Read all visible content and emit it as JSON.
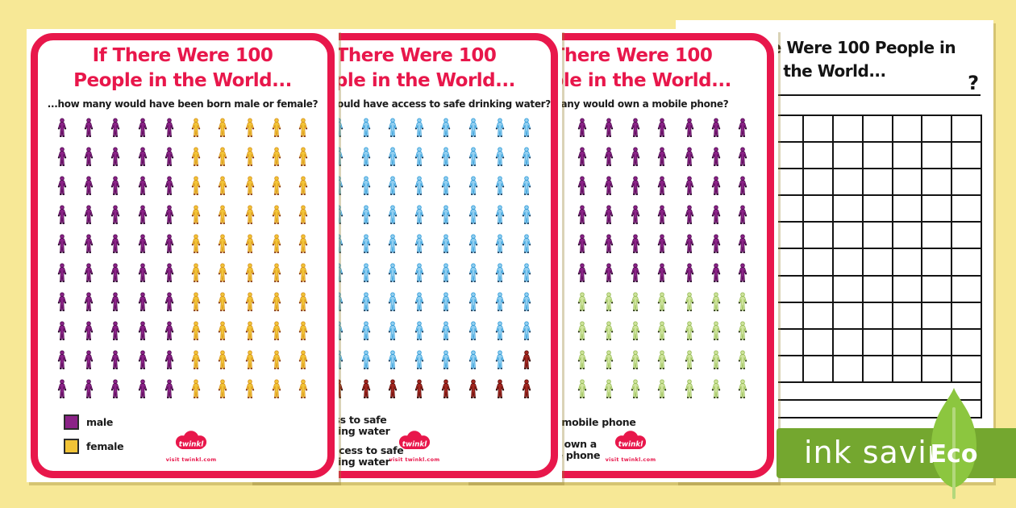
{
  "palette": {
    "background": "#f7e896",
    "accent_red": "#e8174b",
    "text_black": "#1b1b1b",
    "banner_green": "#74a72f",
    "leaf_green": "#8cc63f",
    "leaf_stem_green": "#b3d87c",
    "icon_colors": {
      "purple": {
        "fill": "#8b2287",
        "stroke": "#4f0b50",
        "ext": "#1d001f"
      },
      "yellow": {
        "fill": "#f2c437",
        "stroke": "#d6921e",
        "ext": "#7a2a10"
      },
      "blue": {
        "fill": "#92cff0",
        "stroke": "#2f9bd8",
        "ext": "#16324f"
      },
      "darkred": {
        "fill": "#a3261f",
        "stroke": "#5f0f0c",
        "ext": "#1f0302"
      },
      "green": {
        "fill": "#cfe49c",
        "stroke": "#95bb55",
        "ext": "#1c2408"
      }
    }
  },
  "twinkl": {
    "name": "twinkl",
    "tagline": "visit twinkl.com"
  },
  "cards": [
    {
      "id": "born-male-female",
      "title_line1": "If There Were 100",
      "title_line2": "People in the World...",
      "question": "...how many would have been born male or female?",
      "grid": {
        "rows": 10,
        "cols": 10,
        "fill": "column",
        "series": [
          {
            "name": "male",
            "color": "purple",
            "count": 50
          },
          {
            "name": "female",
            "color": "yellow",
            "count": 50
          }
        ]
      },
      "legend": [
        {
          "color": "purple",
          "label_lines": [
            "male"
          ]
        },
        {
          "color": "yellow",
          "label_lines": [
            "female"
          ]
        }
      ]
    },
    {
      "id": "safe-drinking-water",
      "title_line1": "If There Were 100",
      "title_line2": "People in the World...",
      "question": "...how many would have access to safe drinking water?",
      "grid": {
        "rows": 10,
        "cols": 10,
        "fill": "row",
        "series": [
          {
            "name": "access-to-safe-water",
            "color": "blue",
            "count": 89
          },
          {
            "name": "no-access-to-safe-water",
            "color": "darkred",
            "count": 11
          }
        ]
      },
      "legend": [
        {
          "color": "blue",
          "label_lines": [
            "access to safe",
            "drinking water"
          ]
        },
        {
          "color": "darkred",
          "label_lines": [
            "no access to safe",
            "drinking water"
          ]
        }
      ]
    },
    {
      "id": "mobile-phone",
      "title_line1": "If There Were 100",
      "title_line2": "People in the World...",
      "question": "...how many would own a mobile phone?",
      "grid": {
        "rows": 10,
        "cols": 10,
        "fill": "row",
        "series": [
          {
            "name": "own-mobile-phone",
            "color": "purple",
            "count": 60
          },
          {
            "name": "no-mobile-phone",
            "color": "green",
            "count": 40
          }
        ]
      },
      "legend": [
        {
          "color": "purple",
          "label_lines": [
            "own a mobile phone"
          ]
        },
        {
          "color": "green",
          "label_lines": [
            "do not own a",
            "mobile phone"
          ]
        }
      ]
    }
  ],
  "worksheet": {
    "title_line1": "If There Were 100 People in",
    "title_line2": "the World...",
    "question_mark": "?",
    "grid": {
      "rows": 10,
      "cols": 10
    },
    "answer_rows": 2
  },
  "banner": {
    "text": "ink saving",
    "eco_label": "Eco"
  },
  "chart_data": [
    {
      "type": "pictogram",
      "title": "If There Were 100 People in the World...",
      "subtitle": "...how many would have been born male or female?",
      "categories": [
        "male",
        "female"
      ],
      "values": [
        50,
        50
      ],
      "total": 100,
      "layout": "10x10 person icons, male fills left 5 columns, female right 5 columns",
      "legend_position": "bottom-left"
    },
    {
      "type": "pictogram",
      "title": "If There Were 100 People in the World...",
      "subtitle": "...how many would have access to safe drinking water?",
      "categories": [
        "access to safe drinking water",
        "no access to safe drinking water"
      ],
      "values": [
        89,
        11
      ],
      "total": 100,
      "layout": "10x10 person icons filled row by row, last 11 icons dark red",
      "legend_position": "bottom-left"
    },
    {
      "type": "pictogram",
      "title": "If There Were 100 People in the World...",
      "subtitle": "...how many would own a mobile phone?",
      "categories": [
        "own a mobile phone",
        "do not own a mobile phone"
      ],
      "values": [
        60,
        40
      ],
      "total": 100,
      "layout": "10x10 person icons filled row by row, last 4 rows light green",
      "legend_position": "bottom-left"
    }
  ]
}
